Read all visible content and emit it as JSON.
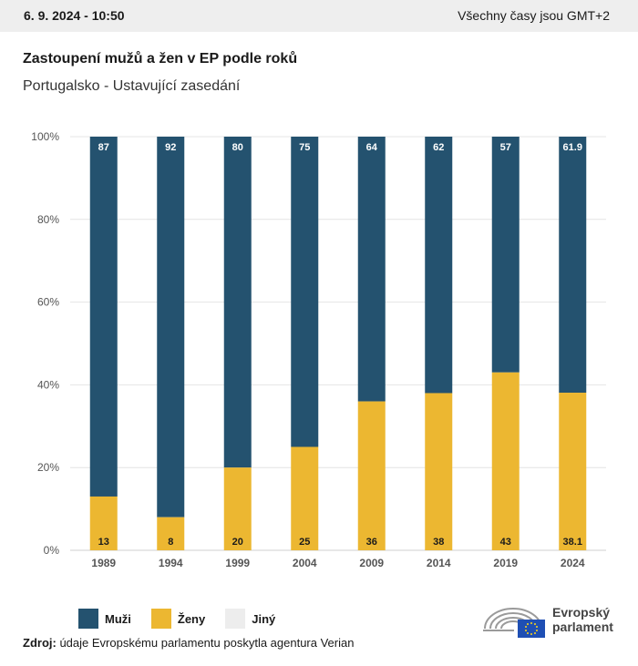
{
  "header": {
    "date": "6. 9. 2024 - 10:50",
    "timezone": "Všechny časy jsou GMT+2"
  },
  "title": "Zastoupení mužů a žen v EP podle roků",
  "subtitle": "Portugalsko - Ustavující zasedání",
  "chart_data": {
    "type": "bar",
    "stacked": true,
    "categories": [
      "1989",
      "1994",
      "1999",
      "2004",
      "2009",
      "2014",
      "2019",
      "2024"
    ],
    "series": [
      {
        "name": "Ženy",
        "values": [
          13,
          8,
          20,
          25,
          36,
          38,
          43,
          38.1
        ],
        "labels": [
          "13",
          "8",
          "20",
          "25",
          "36",
          "38",
          "43",
          "38.1"
        ],
        "color": "#ecb731"
      },
      {
        "name": "Muži",
        "values": [
          87,
          92,
          80,
          75,
          64,
          62,
          57,
          61.9
        ],
        "labels": [
          "87",
          "92",
          "80",
          "75",
          "64",
          "62",
          "57",
          "61.9"
        ],
        "color": "#24526f"
      }
    ],
    "ylim": [
      0,
      100
    ],
    "yticks": [
      "0%",
      "20%",
      "40%",
      "60%",
      "80%",
      "100%"
    ],
    "grid": true
  },
  "legend": [
    {
      "label": "Muži",
      "color": "#24526f"
    },
    {
      "label": "Ženy",
      "color": "#ecb731"
    },
    {
      "label": "Jiný",
      "color": "#ededed"
    }
  ],
  "source": {
    "lead": "Zdroj:",
    "text": " údaje Evropskému parlamentu poskytla agentura Verian"
  },
  "logo": {
    "line1": "Evropský",
    "line2": "parlament"
  }
}
